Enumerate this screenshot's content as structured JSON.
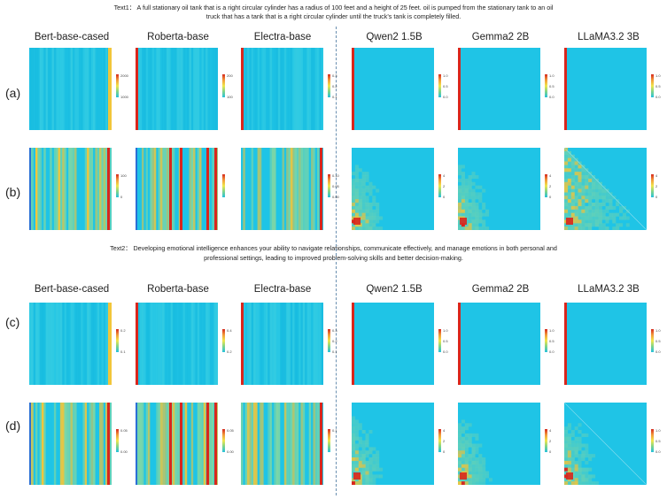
{
  "text1": {
    "line1": "Text1： A full stationary oil tank that is a right circular cylinder has a radius of 100 feet and a height of 25 feet. oil is pumped from the stationary tank to an oil",
    "line2": "truck that has a tank that is a right circular cylinder until the truck’s tank is completely filled."
  },
  "text2": {
    "line1": "Text2： Developing emotional intelligence enhances your ability to navigate relationships, communicate effectively, and manage emotions in both personal and",
    "line2": "professional settings, leading to improved problem-solving skills and better decision-making."
  },
  "columns": [
    "Bert-base-cased",
    "Roberta-base",
    "Electra-base",
    "Qwen2 1.5B",
    "Gemma2 2B",
    "LLaMA3.2 3B"
  ],
  "rows": [
    "(a)",
    "(b)",
    "(c)",
    "(d)"
  ],
  "colorbar_ticks": {
    "a": [
      [
        "2000",
        "1000"
      ],
      [
        "200",
        "100"
      ],
      [
        "0.3",
        "0.2",
        "0.1"
      ],
      [
        "1.0",
        "0.5",
        "0.0"
      ],
      [
        "1.0",
        "0.5",
        "0.0"
      ],
      [
        "1.0",
        "0.5",
        "0.0"
      ]
    ],
    "b": [
      [
        "100",
        "0"
      ],
      [
        "",
        ""
      ],
      [
        "0.10",
        "0.05",
        "0.00"
      ],
      [
        "4",
        "2",
        "0"
      ],
      [
        "4",
        "2",
        "0"
      ],
      [
        "4",
        "2",
        "0"
      ]
    ],
    "c": [
      [
        "0.2",
        "0.1"
      ],
      [
        "0.4",
        "0.2"
      ],
      [
        "0.3",
        "0.2",
        "0.1"
      ],
      [
        "1.0",
        "0.5",
        "0.0"
      ],
      [
        "1.0",
        "0.5",
        "0.0"
      ],
      [
        "1.0",
        "0.5",
        "0.0"
      ]
    ],
    "d": [
      [
        "0.05",
        "0.00"
      ],
      [
        "0.05",
        "0.00"
      ],
      [
        "0.1"
      ],
      [
        "4",
        "2",
        "0"
      ],
      [
        "4",
        "2",
        "0"
      ],
      [
        "1.0",
        "0.5",
        "0.0"
      ]
    ]
  },
  "colors": {
    "base": "#1fc4e6",
    "hot": "#d9261c",
    "warm": "#f2c63a",
    "mid": "#7dd6a6",
    "divider": "#6a8fb0"
  }
}
